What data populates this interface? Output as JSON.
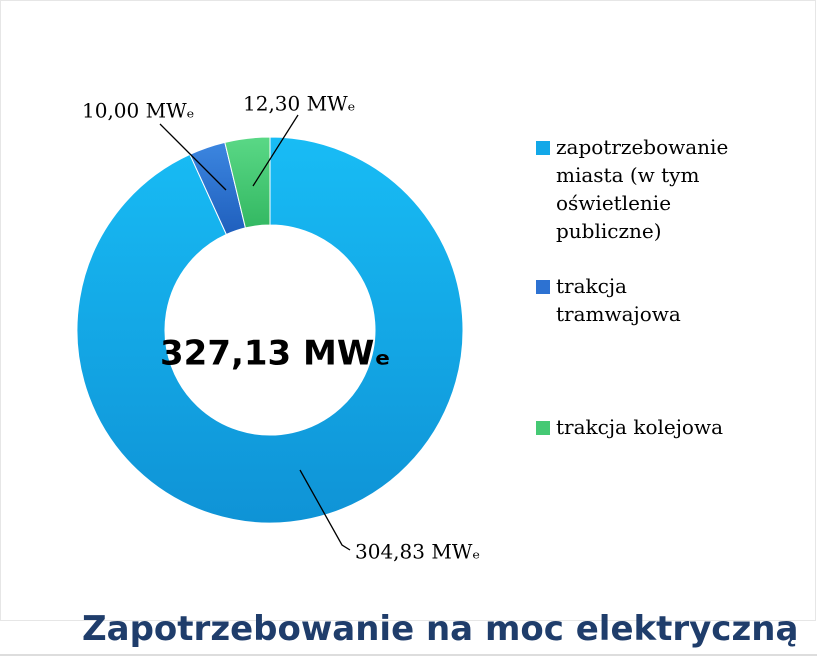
{
  "chart_data": {
    "type": "donut",
    "title": "Zapotrzebowanie na moc elektryczną",
    "center_label": "327,13 MWₑ",
    "categories": [
      "zapotrzebowanie miasta (w tym oświetlenie publiczne)",
      "trakcja tramwajowa",
      "trakcja kolejowa"
    ],
    "values": [
      304.83,
      10.0,
      12.3
    ],
    "value_labels": [
      "304,83 MWₑ",
      "10,00 MWₑ",
      "12,30 MWₑ"
    ],
    "colors": [
      "#13a8e8",
      "#2d72d2",
      "#45c974"
    ],
    "legend": "right"
  }
}
